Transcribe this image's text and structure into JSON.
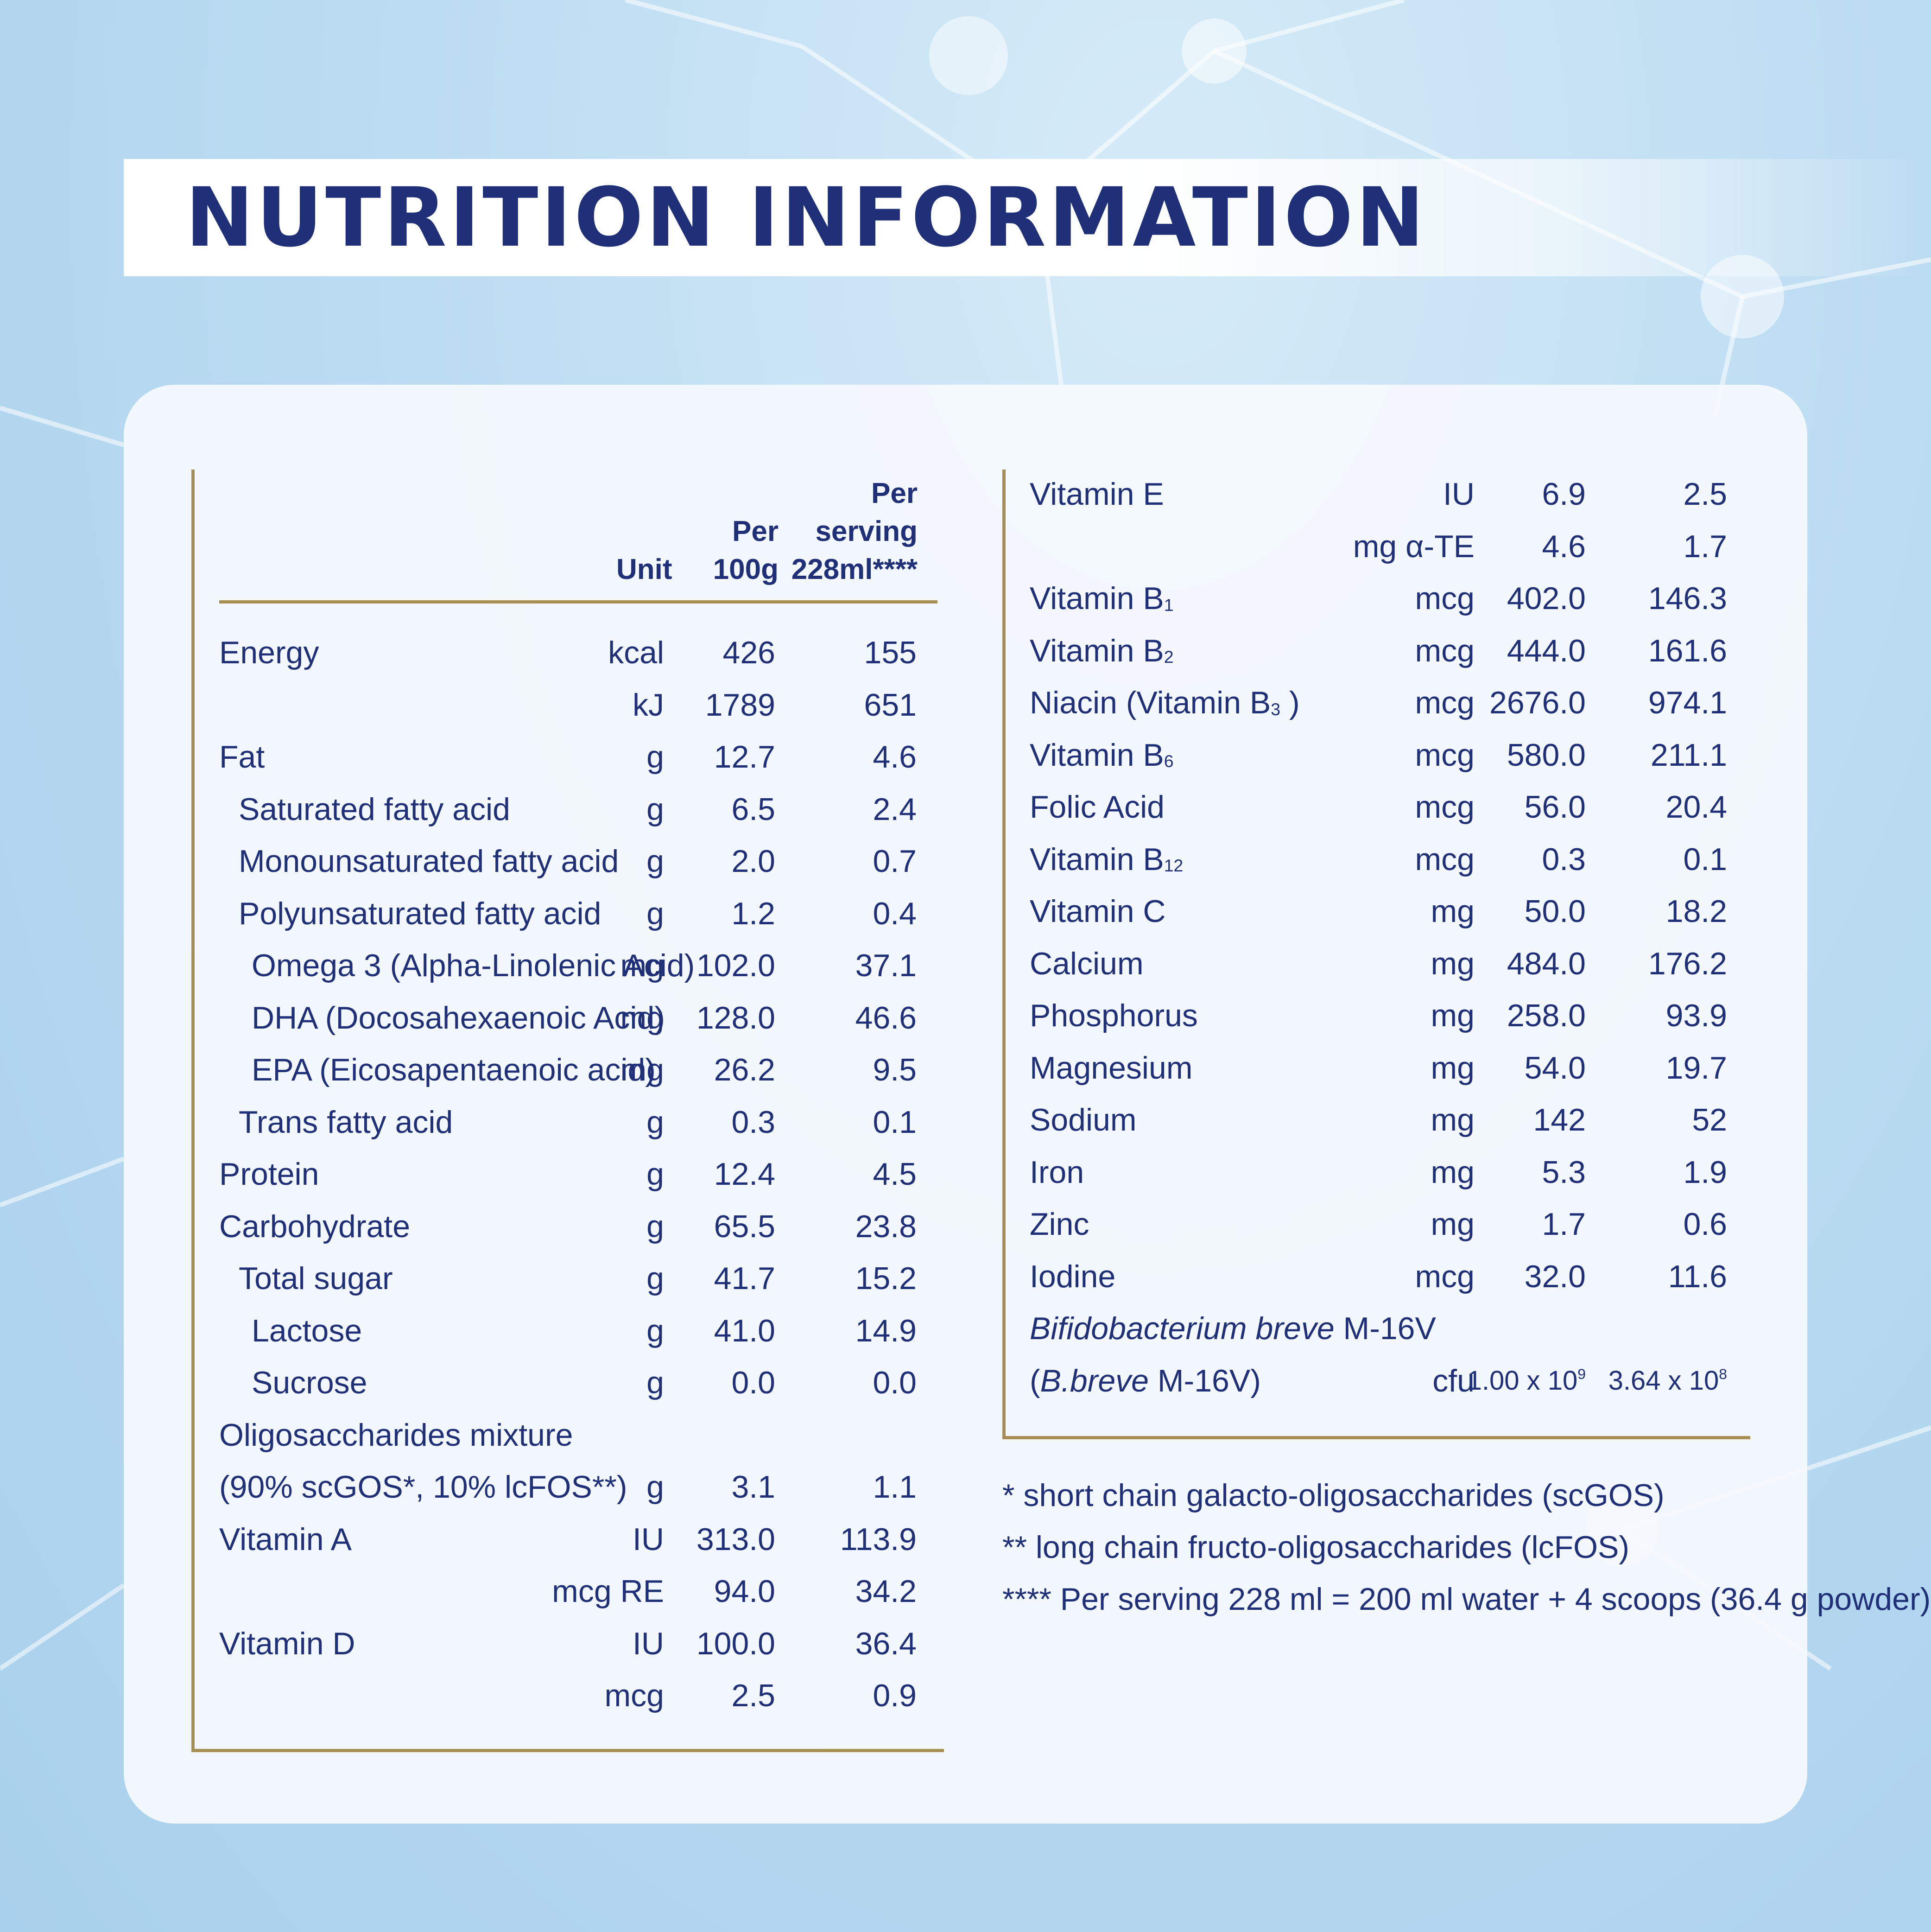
{
  "title": "NUTRITION INFORMATION",
  "header": {
    "unit": "Unit",
    "per100_line1": "Per",
    "per100_line2": "100g",
    "serving_line1": "Per",
    "serving_line2": "serving",
    "serving_line3": "228ml****"
  },
  "left_rows": [
    {
      "name": "Energy",
      "indent": 0,
      "unit": "kcal",
      "per100": "426",
      "serving": "155"
    },
    {
      "name": "",
      "indent": 0,
      "unit": "kJ",
      "per100": "1789",
      "serving": "651"
    },
    {
      "name": "Fat",
      "indent": 0,
      "unit": "g",
      "per100": "12.7",
      "serving": "4.6"
    },
    {
      "name": "Saturated fatty acid",
      "indent": 1,
      "unit": "g",
      "per100": "6.5",
      "serving": "2.4"
    },
    {
      "name": "Monounsaturated fatty acid",
      "indent": 1,
      "unit": "g",
      "per100": "2.0",
      "serving": "0.7"
    },
    {
      "name": "Polyunsaturated fatty acid",
      "indent": 1,
      "unit": "g",
      "per100": "1.2",
      "serving": "0.4"
    },
    {
      "name": "Omega 3 (Alpha-Linolenic Acid)",
      "indent": 2,
      "unit": "mg",
      "per100": "102.0",
      "serving": "37.1"
    },
    {
      "name": "DHA (Docosahexaenoic Acid)",
      "indent": 2,
      "unit": "mg",
      "per100": "128.0",
      "serving": "46.6"
    },
    {
      "name": "EPA (Eicosapentaenoic acid)",
      "indent": 2,
      "unit": "mg",
      "per100": "26.2",
      "serving": "9.5"
    },
    {
      "name": "Trans fatty acid",
      "indent": 1,
      "unit": "g",
      "per100": "0.3",
      "serving": "0.1"
    },
    {
      "name": "Protein",
      "indent": 0,
      "unit": "g",
      "per100": "12.4",
      "serving": "4.5"
    },
    {
      "name": "Carbohydrate",
      "indent": 0,
      "unit": "g",
      "per100": "65.5",
      "serving": "23.8"
    },
    {
      "name": "Total sugar",
      "indent": 1,
      "unit": "g",
      "per100": "41.7",
      "serving": "15.2"
    },
    {
      "name": "Lactose",
      "indent": 2,
      "unit": "g",
      "per100": "41.0",
      "serving": "14.9"
    },
    {
      "name": "Sucrose",
      "indent": 2,
      "unit": "g",
      "per100": "0.0",
      "serving": "0.0"
    },
    {
      "name": "Oligosaccharides mixture",
      "indent": 0,
      "unit": "",
      "per100": "",
      "serving": ""
    },
    {
      "name": "(90% scGOS*, 10% lcFOS**)",
      "indent": 0,
      "unit": "g",
      "per100": "3.1",
      "serving": "1.1"
    },
    {
      "name": "Vitamin A",
      "indent": 0,
      "unit": "IU",
      "per100": "313.0",
      "serving": "113.9"
    },
    {
      "name": "",
      "indent": 0,
      "unit": "mcg RE",
      "per100": "94.0",
      "serving": "34.2"
    },
    {
      "name": "Vitamin D",
      "indent": 0,
      "unit": "IU",
      "per100": "100.0",
      "serving": "36.4"
    },
    {
      "name": "",
      "indent": 0,
      "unit": "mcg",
      "per100": "2.5",
      "serving": "0.9"
    }
  ],
  "right_rows": [
    {
      "name": "Vitamin E",
      "sub": "",
      "suffix": "",
      "unit": "IU",
      "per100": "6.9",
      "serving": "2.5"
    },
    {
      "name": "",
      "sub": "",
      "suffix": "",
      "unit": "mg α-TE",
      "per100": "4.6",
      "serving": "1.7"
    },
    {
      "name": "Vitamin B",
      "sub": "1",
      "suffix": "",
      "unit": "mcg",
      "per100": "402.0",
      "serving": "146.3"
    },
    {
      "name": "Vitamin B",
      "sub": "2",
      "suffix": "",
      "unit": "mcg",
      "per100": "444.0",
      "serving": "161.6"
    },
    {
      "name": "Niacin (Vitamin B",
      "sub": "3",
      "suffix": " )",
      "unit": "mcg",
      "per100": "2676.0",
      "serving": "974.1"
    },
    {
      "name": "Vitamin B",
      "sub": "6",
      "suffix": "",
      "unit": "mcg",
      "per100": "580.0",
      "serving": "211.1"
    },
    {
      "name": "Folic Acid",
      "sub": "",
      "suffix": "",
      "unit": "mcg",
      "per100": "56.0",
      "serving": "20.4"
    },
    {
      "name": "Vitamin B",
      "sub": "12",
      "suffix": "",
      "unit": "mcg",
      "per100": "0.3",
      "serving": "0.1"
    },
    {
      "name": "Vitamin C",
      "sub": "",
      "suffix": "",
      "unit": "mg",
      "per100": "50.0",
      "serving": "18.2"
    },
    {
      "name": "Calcium",
      "sub": "",
      "suffix": "",
      "unit": "mg",
      "per100": "484.0",
      "serving": "176.2"
    },
    {
      "name": "Phosphorus",
      "sub": "",
      "suffix": "",
      "unit": "mg",
      "per100": "258.0",
      "serving": "93.9"
    },
    {
      "name": "Magnesium",
      "sub": "",
      "suffix": "",
      "unit": "mg",
      "per100": "54.0",
      "serving": "19.7"
    },
    {
      "name": "Sodium",
      "sub": "",
      "suffix": "",
      "unit": "mg",
      "per100": "142",
      "serving": "52"
    },
    {
      "name": "Iron",
      "sub": "",
      "suffix": "",
      "unit": "mg",
      "per100": "5.3",
      "serving": "1.9"
    },
    {
      "name": "Zinc",
      "sub": "",
      "suffix": "",
      "unit": "mg",
      "per100": "1.7",
      "serving": "0.6"
    },
    {
      "name": "Iodine",
      "sub": "",
      "suffix": "",
      "unit": "mcg",
      "per100": "32.0",
      "serving": "11.6"
    }
  ],
  "probiotic": {
    "line1_italic": "Bifidobacterium breve",
    "line1_rest": " M-16V",
    "line2_open": "(",
    "line2_italic": "B.breve",
    "line2_rest": " M-16V)",
    "unit": "cfu",
    "per100_base": "1.00 x 10",
    "per100_exp": "9",
    "serving_base": "3.64 x 10",
    "serving_exp": "8"
  },
  "footnotes": [
    "* short chain galacto-oligosaccharides (scGOS)",
    "** long chain fructo-oligosaccharides (lcFOS)",
    "**** Per serving 228 ml = 200 ml water + 4 scoops (36.4 g powder)"
  ]
}
